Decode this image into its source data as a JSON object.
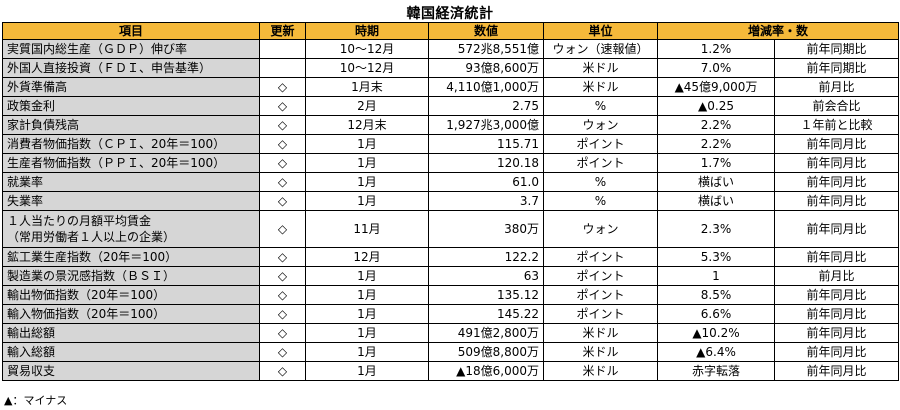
{
  "title": "韓国経済統計",
  "headers": [
    "項目",
    "更新",
    "時期",
    "数値",
    "単位",
    "増減率・数",
    ""
  ],
  "rows": [
    {
      "item": "実質国内総生産（ＧＤＰ）伸び率",
      "item2": "",
      "update": "",
      "period": "10〜12月",
      "value": "572兆8,551億",
      "unit": "ウォン（速報値）",
      "change": "1.2%",
      "basis": "前年同期比"
    },
    {
      "item": "外国人直接投資（ＦＤＩ、申告基準）",
      "item2": "",
      "update": "",
      "period": "10〜12月",
      "value": "93億8,600万",
      "unit": "米ドル",
      "change": "7.0%",
      "basis": "前年同期比"
    },
    {
      "item": "外貨準備高",
      "item2": "",
      "update": "◇",
      "period": "1月末",
      "value": "4,110億1,000万",
      "unit": "米ドル",
      "change": "▲45億9,000万",
      "basis": "前月比"
    },
    {
      "item": "政策金利",
      "item2": "",
      "update": "◇",
      "period": "2月",
      "value": "2.75",
      "unit": "%",
      "change": "▲0.25",
      "basis": "前会合比"
    },
    {
      "item": "家計負債残高",
      "item2": "",
      "update": "◇",
      "period": "12月末",
      "value": "1,927兆3,000億",
      "unit": "ウォン",
      "change": "2.2%",
      "basis": "１年前と比較"
    },
    {
      "item": "消費者物価指数（ＣＰＩ、20年＝100）",
      "item2": "",
      "update": "◇",
      "period": "1月",
      "value": "115.71",
      "unit": "ポイント",
      "change": "2.2%",
      "basis": "前年同月比"
    },
    {
      "item": "生産者物価指数（ＰＰＩ、20年＝100）",
      "item2": "",
      "update": "◇",
      "period": "1月",
      "value": "120.18",
      "unit": "ポイント",
      "change": "1.7%",
      "basis": "前年同月比"
    },
    {
      "item": "就業率",
      "item2": "",
      "update": "◇",
      "period": "1月",
      "value": "61.0",
      "unit": "%",
      "change": "横ばい",
      "basis": "前年同月比"
    },
    {
      "item": "失業率",
      "item2": "",
      "update": "◇",
      "period": "1月",
      "value": "3.7",
      "unit": "%",
      "change": "横ばい",
      "basis": "前年同月比"
    },
    {
      "item": "１人当たりの月額平均賃金",
      "item2": "（常用労働者１人以上の企業）",
      "update": "◇",
      "period": "11月",
      "value": "380万",
      "unit": "ウォン",
      "change": "2.3%",
      "basis": "前年同月比"
    },
    {
      "item": "鉱工業生産指数（20年＝100）",
      "item2": "",
      "update": "◇",
      "period": "12月",
      "value": "122.2",
      "unit": "ポイント",
      "change": "5.3%",
      "basis": "前年同月比"
    },
    {
      "item": "製造業の景況感指数（ＢＳＩ）",
      "item2": "",
      "update": "◇",
      "period": "1月",
      "value": "63",
      "unit": "ポイント",
      "change": "1",
      "basis": "前月比"
    },
    {
      "item": "輸出物価指数（20年＝100）",
      "item2": "",
      "update": "◇",
      "period": "1月",
      "value": "135.12",
      "unit": "ポイント",
      "change": "8.5%",
      "basis": "前年同月比"
    },
    {
      "item": "輸入物価指数（20年＝100）",
      "item2": "",
      "update": "◇",
      "period": "1月",
      "value": "145.22",
      "unit": "ポイント",
      "change": "6.6%",
      "basis": "前年同月比"
    },
    {
      "item": "輸出総額",
      "item2": "",
      "update": "◇",
      "period": "1月",
      "value": "491億2,800万",
      "unit": "米ドル",
      "change": "▲10.2%",
      "basis": "前年同月比"
    },
    {
      "item": "輸入総額",
      "item2": "",
      "update": "◇",
      "period": "1月",
      "value": "509億8,800万",
      "unit": "米ドル",
      "change": "▲6.4%",
      "basis": "前年同月比"
    },
    {
      "item": "貿易収支",
      "item2": "",
      "update": "◇",
      "period": "1月",
      "value": "▲18億6,000万",
      "unit": "米ドル",
      "change": "赤字転落",
      "basis": "前年同月比"
    }
  ],
  "note": "▲：マイナス"
}
